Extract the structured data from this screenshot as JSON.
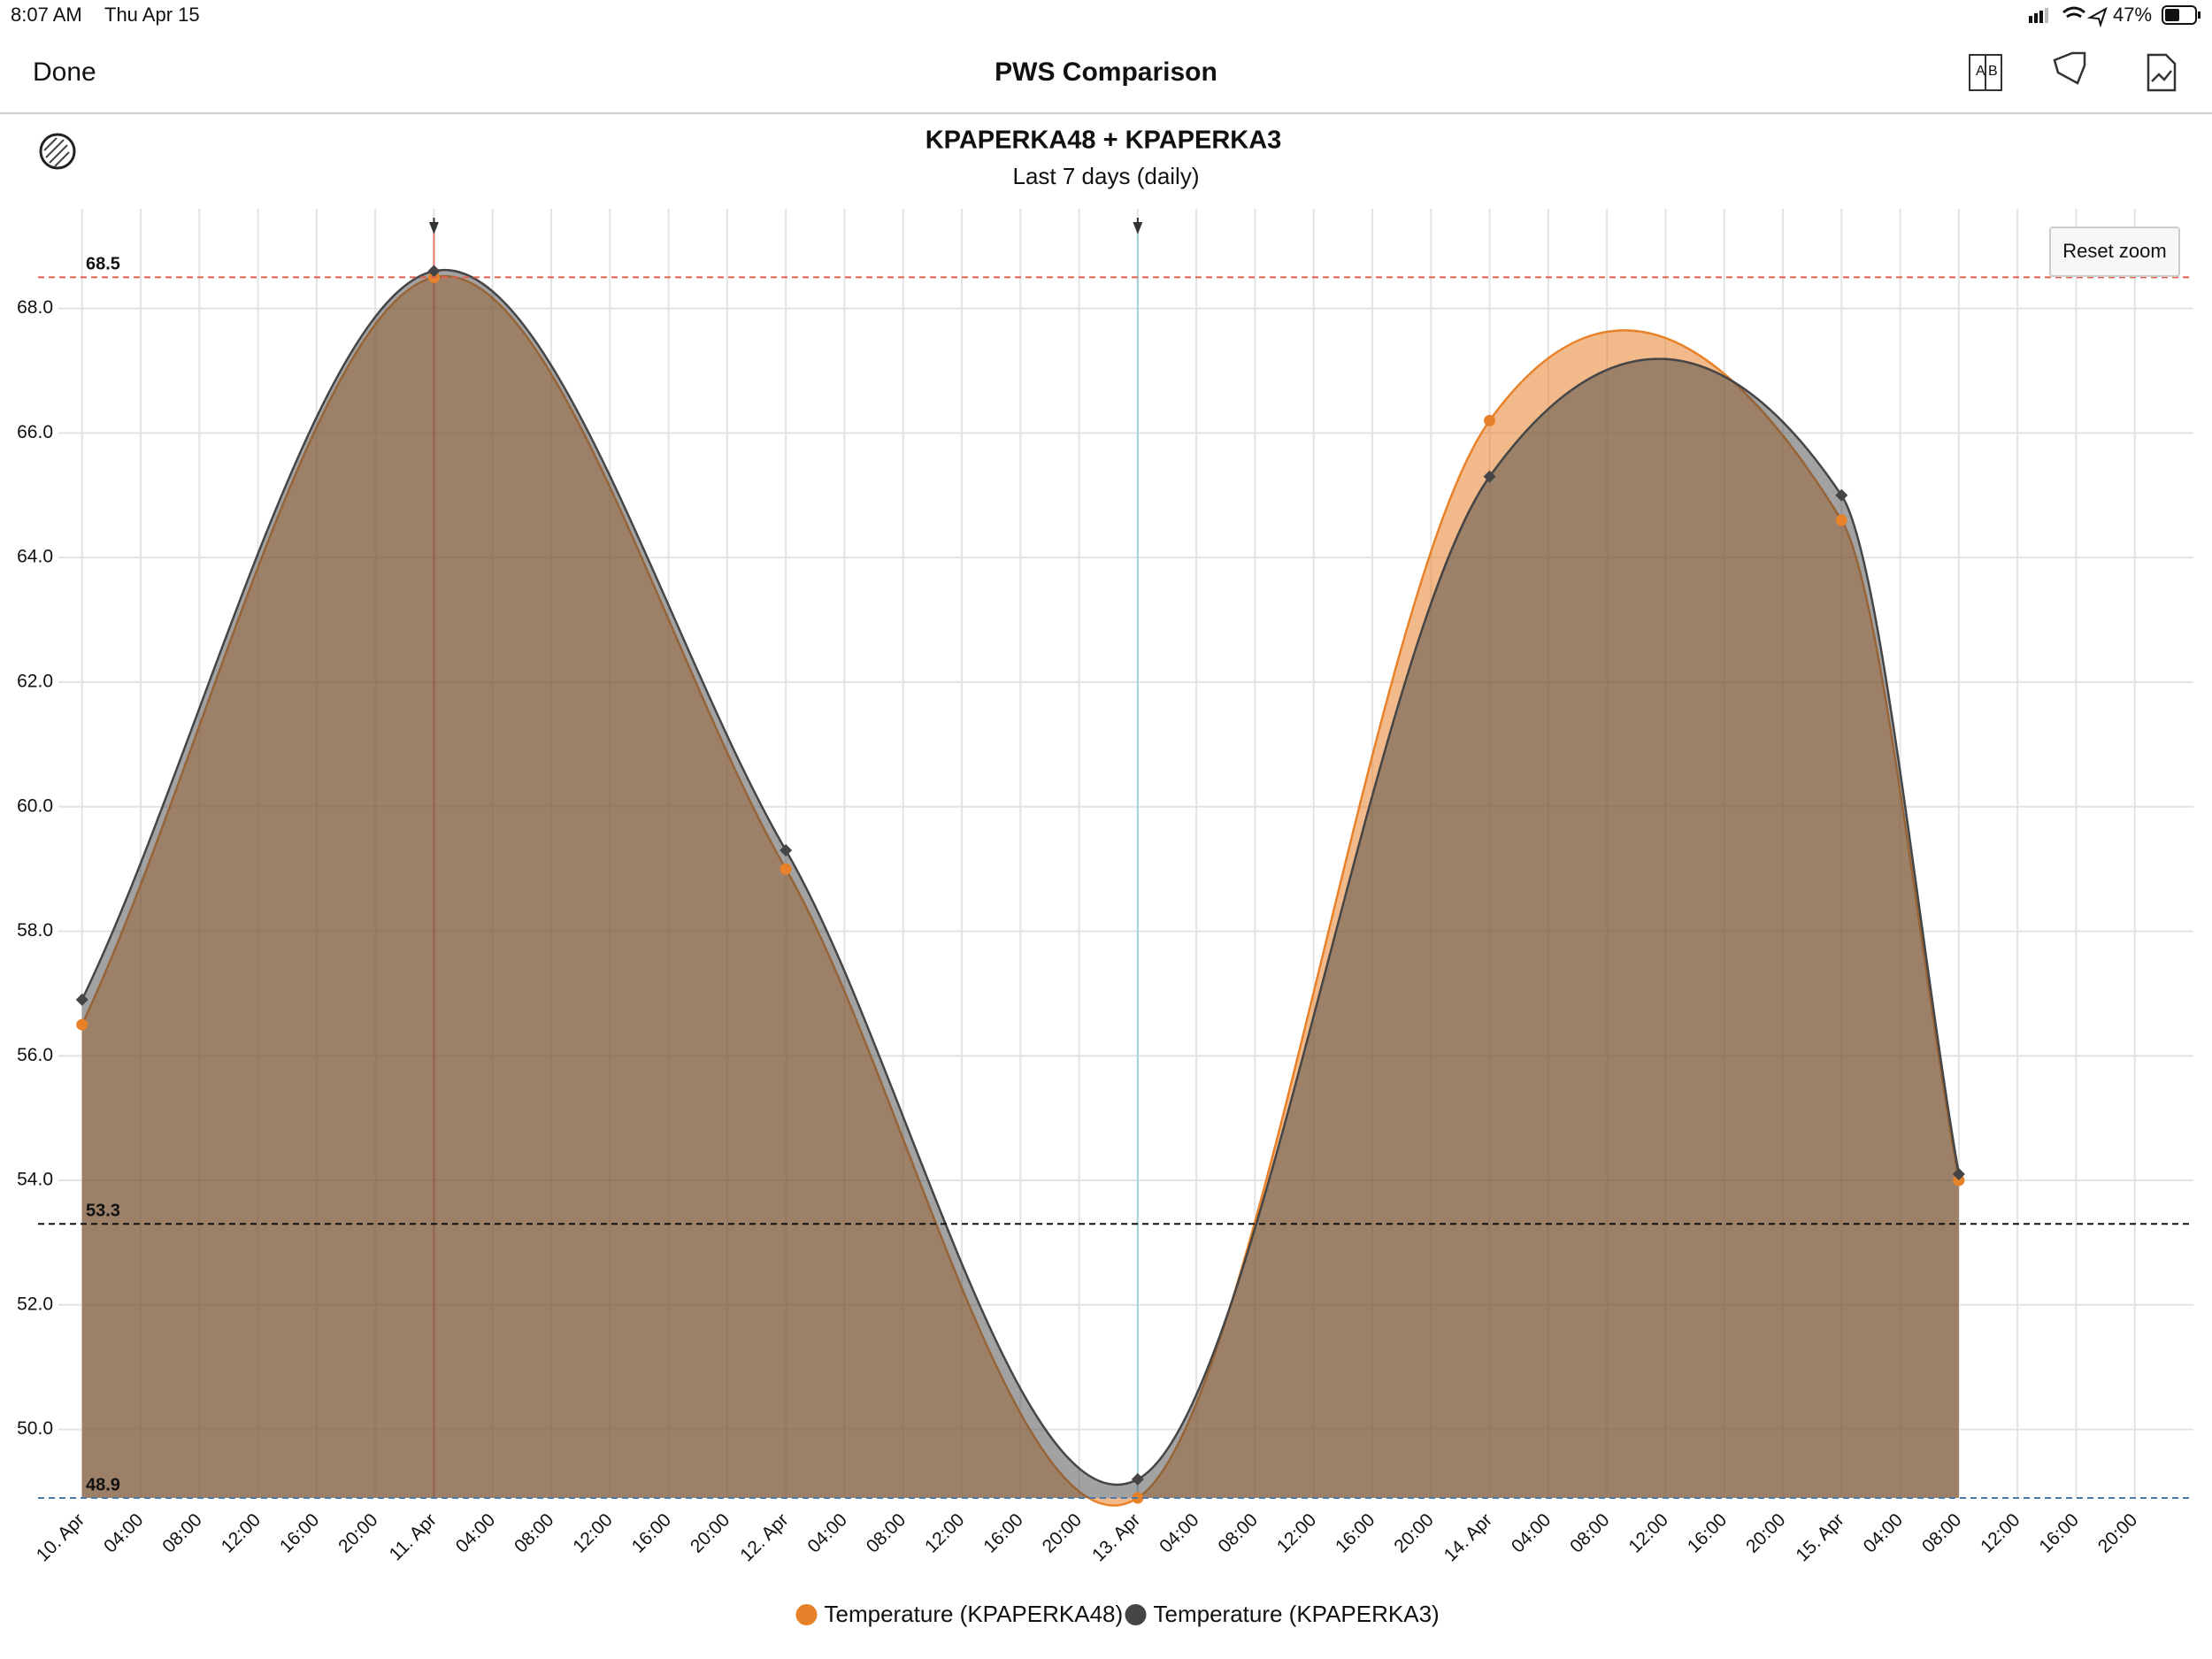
{
  "status_bar": {
    "time": "8:07 AM",
    "date": "Thu Apr 15",
    "battery": "47%"
  },
  "nav_bar": {
    "done": "Done",
    "title": "PWS Comparison"
  },
  "reset_zoom": "Reset zoom",
  "chart_data": {
    "type": "areaspline",
    "title": "KPAPERKA48 + KPAPERKA3",
    "subtitle": "Last 7 days (daily)",
    "x": [
      "Apr 10 00:00",
      "Apr 11 00:00",
      "Apr 12 00:00",
      "Apr 13 00:00",
      "Apr 14 00:00",
      "Apr 15 00:00",
      "Apr 15 08:00"
    ],
    "series": [
      {
        "name": "Temperature (KPAPERKA48)",
        "color": "#e8822a",
        "marker": "circle",
        "values": [
          56.5,
          68.5,
          59.0,
          48.9,
          66.2,
          64.6,
          54.0
        ]
      },
      {
        "name": "Temperature (KPAPERKA3)",
        "color": "#454545",
        "marker": "diamond",
        "values": [
          56.9,
          68.6,
          59.3,
          49.2,
          65.3,
          65.0,
          54.1
        ]
      }
    ],
    "xlim": [
      "Apr 9 21:00",
      "Apr 16 00:00"
    ],
    "xticks": [
      {
        "value": "Apr 10 00:00",
        "label": "10. Apr"
      },
      {
        "value": "Apr 10 04:00",
        "label": "04:00"
      },
      {
        "value": "Apr 10 08:00",
        "label": "08:00"
      },
      {
        "value": "Apr 10 12:00",
        "label": "12:00"
      },
      {
        "value": "Apr 10 16:00",
        "label": "16:00"
      },
      {
        "value": "Apr 10 20:00",
        "label": "20:00"
      },
      {
        "value": "Apr 11 00:00",
        "label": "11. Apr"
      },
      {
        "value": "Apr 11 04:00",
        "label": "04:00"
      },
      {
        "value": "Apr 11 08:00",
        "label": "08:00"
      },
      {
        "value": "Apr 11 12:00",
        "label": "12:00"
      },
      {
        "value": "Apr 11 16:00",
        "label": "16:00"
      },
      {
        "value": "Apr 11 20:00",
        "label": "20:00"
      },
      {
        "value": "Apr 12 00:00",
        "label": "12. Apr"
      },
      {
        "value": "Apr 12 04:00",
        "label": "04:00"
      },
      {
        "value": "Apr 12 08:00",
        "label": "08:00"
      },
      {
        "value": "Apr 12 12:00",
        "label": "12:00"
      },
      {
        "value": "Apr 12 16:00",
        "label": "16:00"
      },
      {
        "value": "Apr 12 20:00",
        "label": "20:00"
      },
      {
        "value": "Apr 13 00:00",
        "label": "13. Apr"
      },
      {
        "value": "Apr 13 04:00",
        "label": "04:00"
      },
      {
        "value": "Apr 13 08:00",
        "label": "08:00"
      },
      {
        "value": "Apr 13 12:00",
        "label": "12:00"
      },
      {
        "value": "Apr 13 16:00",
        "label": "16:00"
      },
      {
        "value": "Apr 13 20:00",
        "label": "20:00"
      },
      {
        "value": "Apr 14 00:00",
        "label": "14. Apr"
      },
      {
        "value": "Apr 14 04:00",
        "label": "04:00"
      },
      {
        "value": "Apr 14 08:00",
        "label": "08:00"
      },
      {
        "value": "Apr 14 12:00",
        "label": "12:00"
      },
      {
        "value": "Apr 14 16:00",
        "label": "16:00"
      },
      {
        "value": "Apr 14 20:00",
        "label": "20:00"
      },
      {
        "value": "Apr 15 00:00",
        "label": "15. Apr"
      },
      {
        "value": "Apr 15 04:00",
        "label": "04:00"
      },
      {
        "value": "Apr 15 08:00",
        "label": "08:00"
      },
      {
        "value": "Apr 15 12:00",
        "label": "12:00"
      },
      {
        "value": "Apr 15 16:00",
        "label": "16:00"
      },
      {
        "value": "Apr 15 20:00",
        "label": "20:00"
      }
    ],
    "ylim": [
      48.9,
      69.6
    ],
    "yticks": [
      {
        "value": 50,
        "label": "50.0"
      },
      {
        "value": 52,
        "label": "52.0"
      },
      {
        "value": 54,
        "label": "54.0"
      },
      {
        "value": 56,
        "label": "56.0"
      },
      {
        "value": 58,
        "label": "58.0"
      },
      {
        "value": 60,
        "label": "60.0"
      },
      {
        "value": 62,
        "label": "62.0"
      },
      {
        "value": 64,
        "label": "64.0"
      },
      {
        "value": 66,
        "label": "66.0"
      },
      {
        "value": 68,
        "label": "68.0"
      }
    ],
    "grid": true,
    "plot_lines": [
      {
        "value": 68.5,
        "color": "#e0604f"
      },
      {
        "value": 53.3,
        "color": "#111111"
      },
      {
        "value": 48.9,
        "color": "#4a78a8"
      }
    ],
    "x_markers": [
      {
        "x": "Apr 11 00:00",
        "color": "#e3796b"
      },
      {
        "x": "Apr 13 00:00",
        "color": "#9fd3e0"
      }
    ],
    "legend": "bottom"
  }
}
